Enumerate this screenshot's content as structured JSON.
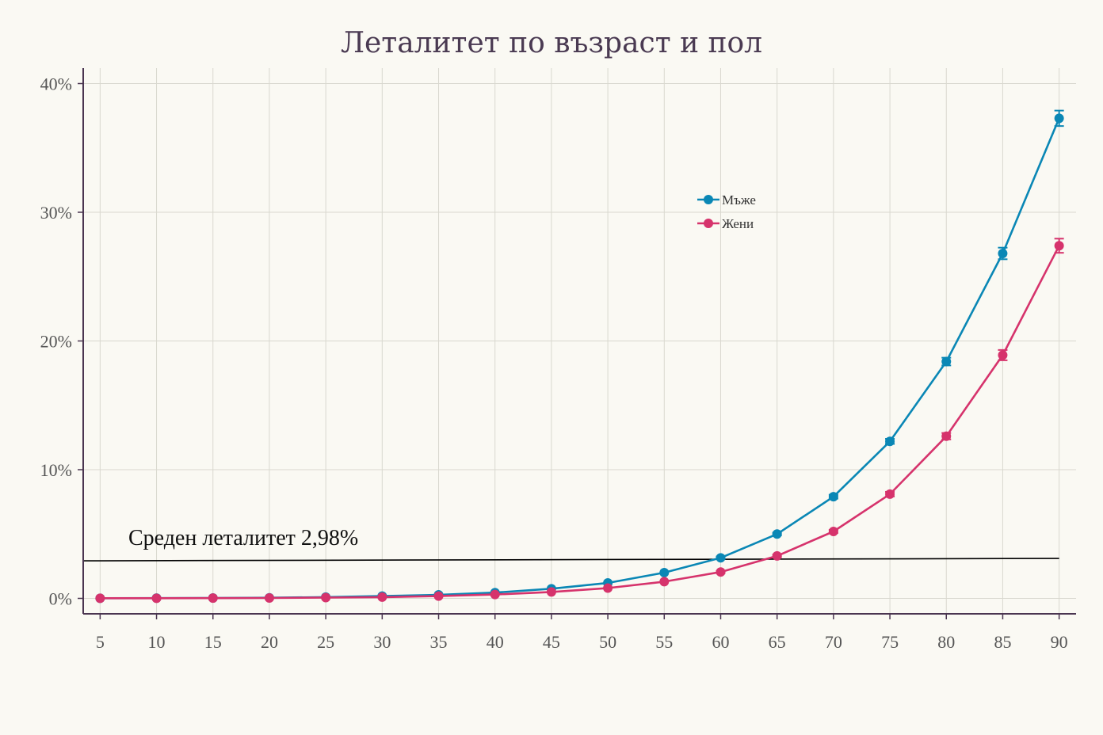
{
  "chart_data": {
    "type": "line",
    "title": "Леталитет по възраст и пол",
    "xlabel": "",
    "ylabel": "",
    "x": [
      5,
      10,
      15,
      20,
      25,
      30,
      35,
      40,
      45,
      50,
      55,
      60,
      65,
      70,
      75,
      80,
      85,
      90
    ],
    "xlim": [
      3.5,
      91.5
    ],
    "ylim": [
      -1.2,
      41.2
    ],
    "y_ticks": [
      0,
      10,
      20,
      30,
      40
    ],
    "y_tick_labels": [
      "0%",
      "10%",
      "20%",
      "30%",
      "40%"
    ],
    "grid": true,
    "legend_position": "upper-center-right",
    "series": [
      {
        "name": "Мъже",
        "color": "#0a87b5",
        "values": [
          0.01,
          0.02,
          0.03,
          0.05,
          0.1,
          0.18,
          0.28,
          0.45,
          0.75,
          1.2,
          2.0,
          3.15,
          5.0,
          7.9,
          12.2,
          18.4,
          26.8,
          37.3
        ],
        "error": [
          0,
          0,
          0,
          0,
          0,
          0,
          0,
          0,
          0,
          0,
          0,
          0.1,
          0.1,
          0.15,
          0.2,
          0.3,
          0.45,
          0.6
        ]
      },
      {
        "name": "Жени",
        "color": "#d6336c",
        "values": [
          0.01,
          0.01,
          0.02,
          0.03,
          0.06,
          0.1,
          0.18,
          0.3,
          0.5,
          0.8,
          1.3,
          2.05,
          3.3,
          5.2,
          8.1,
          12.6,
          18.9,
          27.4
        ],
        "error": [
          0,
          0,
          0,
          0,
          0,
          0,
          0,
          0,
          0,
          0,
          0,
          0.08,
          0.1,
          0.12,
          0.18,
          0.25,
          0.4,
          0.55
        ]
      }
    ],
    "reference_line": {
      "label": "Среден леталитет 2,98%",
      "value": 2.98,
      "color": "#000000"
    }
  }
}
